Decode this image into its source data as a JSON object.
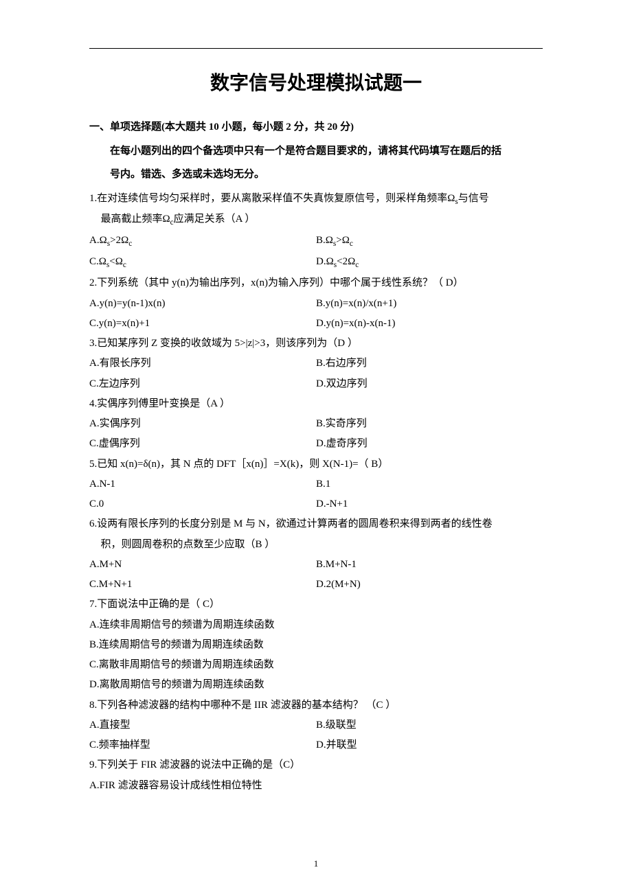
{
  "title": "数字信号处理模拟试题一",
  "section": {
    "heading": "一、单项选择题(本大题共 10 小题，每小题 2 分，共 20 分)",
    "note1": "在每小题列出的四个备选项中只有一个是符合题目要求的，请将其代码填写在题后的括",
    "note2": "号内。错选、多选或未选均无分。"
  },
  "q1": {
    "stem1": "1.在对连续信号均匀采样时，要从离散采样值不失真恢复原信号，则采样角频率Ω",
    "stem1b": "与信号",
    "stem2": "最高截止频率Ω",
    "stem2b": "应满足关系（A ）",
    "A": "A.Ω",
    "Asub": "s",
    "A2": ">2Ω",
    "Asub2": "c",
    "B": "B.Ω",
    "Bsub": "s",
    "B2": ">Ω",
    "Bsub2": "c",
    "C": "C.Ω",
    "Csub": "s",
    "C2": "<Ω",
    "Csub2": "c",
    "D": "D.Ω",
    "Dsub": "s",
    "D2": "<2Ω",
    "Dsub2": "c"
  },
  "q2": {
    "stem": "2.下列系统（其中 y(n)为输出序列，x(n)为输入序列）中哪个属于线性系统？（ D）",
    "A": "A.y(n)=y(n-1)x(n)",
    "B": "B.y(n)=x(n)/x(n+1)",
    "C": "C.y(n)=x(n)+1",
    "D": "D.y(n)=x(n)-x(n-1)"
  },
  "q3": {
    "stem": "3.已知某序列 Z 变换的收敛域为 5>|z|>3，则该序列为（D ）",
    "A": "A.有限长序列",
    "B": "B.右边序列",
    "C": "C.左边序列",
    "D": "D.双边序列"
  },
  "q4": {
    "stem": "4.实偶序列傅里叶变换是（A ）",
    "A": "A.实偶序列",
    "B": "B.实奇序列",
    "C": "C.虚偶序列",
    "D": "D.虚奇序列"
  },
  "q5": {
    "stem": "5.已知 x(n)=δ(n)，其 N 点的 DFT［x(n)］=X(k)，则 X(N-1)=（ B）",
    "A": "A.N-1",
    "B": "B.1",
    "C": "C.0",
    "D": "D.-N+1"
  },
  "q6": {
    "stem1": "6.设两有限长序列的长度分别是 M 与 N，欲通过计算两者的圆周卷积来得到两者的线性卷",
    "stem2": "积，则圆周卷积的点数至少应取（B ）",
    "A": "A.M+N",
    "B": "B.M+N-1",
    "C": "C.M+N+1",
    "D": "D.2(M+N)"
  },
  "q7": {
    "stem": "7.下面说法中正确的是（ C）",
    "A": "A.连续非周期信号的频谱为周期连续函数",
    "B": "B.连续周期信号的频谱为周期连续函数",
    "C": "C.离散非周期信号的频谱为周期连续函数",
    "D": "D.离散周期信号的频谱为周期连续函数"
  },
  "q8": {
    "stem": "8.下列各种滤波器的结构中哪种不是 IIR 滤波器的基本结构？ （C ）",
    "A": "A.直接型",
    "B": "B.级联型",
    "C": "C.频率抽样型",
    "D": "D.并联型"
  },
  "q9": {
    "stem": "9.下列关于 FIR 滤波器的说法中正确的是（C）",
    "A": "A.FIR 滤波器容易设计成线性相位特性"
  },
  "pageNumber": "1"
}
